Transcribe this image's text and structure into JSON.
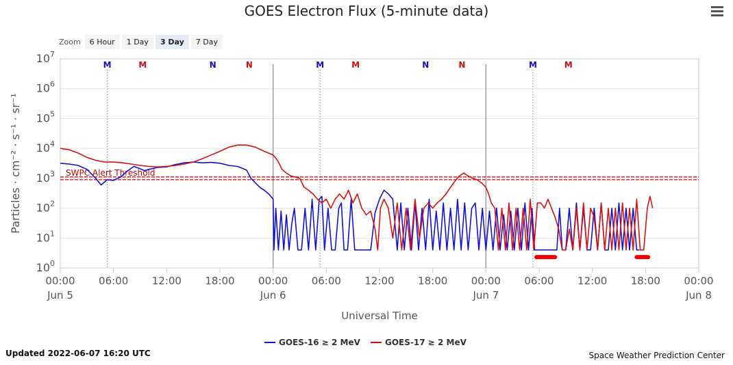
{
  "chart_data": {
    "type": "line",
    "title": "GOES Electron Flux (5-minute data)",
    "xlabel": "Universal Time",
    "ylabel": "Particles · cm⁻² · s⁻¹ · sr⁻¹",
    "y_scale": "log",
    "ylim": [
      1,
      10000000
    ],
    "xlim": [
      "2022-06-05 00:00",
      "2022-06-08 00:00"
    ],
    "y_ticks": [
      {
        "value": 1,
        "base": "10",
        "exp": "0"
      },
      {
        "value": 10,
        "base": "10",
        "exp": "1"
      },
      {
        "value": 100,
        "base": "10",
        "exp": "2"
      },
      {
        "value": 1000,
        "base": "10",
        "exp": "3"
      },
      {
        "value": 10000,
        "base": "10",
        "exp": "4"
      },
      {
        "value": 100000,
        "base": "10",
        "exp": "5"
      },
      {
        "value": 1000000,
        "base": "10",
        "exp": "6"
      },
      {
        "value": 10000000,
        "base": "10",
        "exp": "7"
      }
    ],
    "x_ticks": [
      {
        "h": 0,
        "time": "00:00",
        "day": "Jun 5"
      },
      {
        "h": 6,
        "time": "06:00",
        "day": ""
      },
      {
        "h": 12,
        "time": "12:00",
        "day": ""
      },
      {
        "h": 18,
        "time": "18:00",
        "day": ""
      },
      {
        "h": 24,
        "time": "00:00",
        "day": "Jun 6"
      },
      {
        "h": 30,
        "time": "06:00",
        "day": ""
      },
      {
        "h": 36,
        "time": "12:00",
        "day": ""
      },
      {
        "h": 42,
        "time": "18:00",
        "day": ""
      },
      {
        "h": 48,
        "time": "00:00",
        "day": "Jun 7"
      },
      {
        "h": 54,
        "time": "06:00",
        "day": ""
      },
      {
        "h": 60,
        "time": "12:00",
        "day": ""
      },
      {
        "h": 66,
        "time": "18:00",
        "day": ""
      },
      {
        "h": 72,
        "time": "00:00",
        "day": "Jun 8"
      }
    ],
    "threshold": {
      "value": 1000,
      "label": "SWPC Alert Threshold",
      "color": "#cc0000"
    },
    "day_lines_h": [
      24,
      48
    ],
    "marker_lines_h": [
      5.3,
      29.3,
      53.3
    ],
    "markers": [
      {
        "h": 5.3,
        "label": "M",
        "color": "#1010cc"
      },
      {
        "h": 9.3,
        "label": "M",
        "color": "#cc1010"
      },
      {
        "h": 17.2,
        "label": "N",
        "color": "#1010cc"
      },
      {
        "h": 21.3,
        "label": "N",
        "color": "#cc1010"
      },
      {
        "h": 29.3,
        "label": "M",
        "color": "#1010cc"
      },
      {
        "h": 33.3,
        "label": "M",
        "color": "#cc1010"
      },
      {
        "h": 41.2,
        "label": "N",
        "color": "#1010cc"
      },
      {
        "h": 45.3,
        "label": "N",
        "color": "#cc1010"
      },
      {
        "h": 53.3,
        "label": "M",
        "color": "#1010cc"
      },
      {
        "h": 57.3,
        "label": "M",
        "color": "#cc1010"
      }
    ],
    "series": [
      {
        "name": "GOES-16 ≥ 2 MeV",
        "color": "#1010dd",
        "points": [
          [
            0,
            3200
          ],
          [
            1,
            3000
          ],
          [
            2,
            2700
          ],
          [
            3,
            2000
          ],
          [
            4,
            1000
          ],
          [
            4.6,
            600
          ],
          [
            5.3,
            900
          ],
          [
            6,
            850
          ],
          [
            6.8,
            1100
          ],
          [
            7.5,
            1700
          ],
          [
            8.3,
            2500
          ],
          [
            9,
            2100
          ],
          [
            9.5,
            1800
          ],
          [
            10,
            2000
          ],
          [
            11,
            2300
          ],
          [
            12,
            2400
          ],
          [
            13,
            2900
          ],
          [
            14,
            3300
          ],
          [
            15,
            3500
          ],
          [
            16,
            3300
          ],
          [
            17,
            3400
          ],
          [
            18,
            3200
          ],
          [
            19,
            2700
          ],
          [
            20,
            2500
          ],
          [
            21,
            1900
          ],
          [
            21.5,
            1000
          ],
          [
            22,
            700
          ],
          [
            22.5,
            500
          ],
          [
            23,
            400
          ],
          [
            23.5,
            300
          ],
          [
            24,
            200
          ],
          [
            24.1,
            4
          ],
          [
            24.3,
            100
          ],
          [
            24.6,
            4
          ],
          [
            24.9,
            80
          ],
          [
            25.2,
            4
          ],
          [
            25.5,
            60
          ],
          [
            25.8,
            4
          ],
          [
            26.1,
            30
          ],
          [
            26.4,
            100
          ],
          [
            26.8,
            4
          ],
          [
            27.2,
            4
          ],
          [
            27.6,
            100
          ],
          [
            28,
            4
          ],
          [
            28.4,
            200
          ],
          [
            28.8,
            4
          ],
          [
            29.2,
            200
          ],
          [
            29.5,
            250
          ],
          [
            29.8,
            4
          ],
          [
            30.2,
            100
          ],
          [
            30.6,
            4
          ],
          [
            31,
            4
          ],
          [
            31.4,
            100
          ],
          [
            31.7,
            150
          ],
          [
            32,
            4
          ],
          [
            32.4,
            4
          ],
          [
            32.8,
            200
          ],
          [
            33.2,
            4
          ],
          [
            33.6,
            4
          ],
          [
            34.5,
            4
          ],
          [
            35,
            4
          ],
          [
            35.5,
            70
          ],
          [
            36,
            200
          ],
          [
            36.5,
            400
          ],
          [
            37,
            300
          ],
          [
            37.5,
            200
          ],
          [
            38,
            4
          ],
          [
            38.4,
            150
          ],
          [
            38.8,
            4
          ],
          [
            39.2,
            100
          ],
          [
            39.6,
            4
          ],
          [
            40,
            150
          ],
          [
            40.4,
            4
          ],
          [
            40.8,
            100
          ],
          [
            41.2,
            4
          ],
          [
            41.6,
            200
          ],
          [
            42,
            4
          ],
          [
            42.4,
            80
          ],
          [
            42.8,
            4
          ],
          [
            43.2,
            150
          ],
          [
            43.6,
            4
          ],
          [
            44,
            100
          ],
          [
            44.4,
            4
          ],
          [
            44.8,
            200
          ],
          [
            45.2,
            4
          ],
          [
            45.6,
            150
          ],
          [
            46,
            4
          ],
          [
            46.4,
            100
          ],
          [
            46.8,
            150
          ],
          [
            47.2,
            4
          ],
          [
            47.6,
            100
          ],
          [
            48,
            4
          ],
          [
            48.4,
            80
          ],
          [
            48.8,
            4
          ],
          [
            49.2,
            100
          ],
          [
            49.6,
            4
          ],
          [
            50,
            60
          ],
          [
            50.4,
            4
          ],
          [
            50.8,
            80
          ],
          [
            51.2,
            4
          ],
          [
            51.6,
            100
          ],
          [
            52,
            4
          ],
          [
            52.4,
            150
          ],
          [
            52.8,
            4
          ],
          [
            53.2,
            100
          ],
          [
            53.5,
            4
          ],
          [
            54,
            4
          ],
          [
            55,
            4
          ],
          [
            56,
            4
          ],
          [
            56.3,
            100
          ],
          [
            56.6,
            4
          ],
          [
            57,
            4
          ],
          [
            57.4,
            100
          ],
          [
            57.8,
            4
          ],
          [
            58.2,
            150
          ],
          [
            58.6,
            4
          ],
          [
            59,
            100
          ],
          [
            59.4,
            4
          ],
          [
            59.8,
            4
          ],
          [
            60.2,
            100
          ],
          [
            60.6,
            4
          ],
          [
            61,
            150
          ],
          [
            61.4,
            4
          ],
          [
            61.8,
            4
          ],
          [
            62.2,
            100
          ],
          [
            62.6,
            4
          ],
          [
            63,
            150
          ],
          [
            63.4,
            4
          ],
          [
            63.8,
            100
          ],
          [
            64.2,
            4
          ],
          [
            64.6,
            100
          ],
          [
            65,
            4
          ],
          [
            65.3,
            4
          ]
        ]
      },
      {
        "name": "GOES-17 ≥ 2 MeV",
        "color": "#dd1010",
        "points": [
          [
            0,
            10000
          ],
          [
            1,
            9000
          ],
          [
            2,
            7000
          ],
          [
            3,
            5000
          ],
          [
            4,
            4000
          ],
          [
            5,
            3500
          ],
          [
            6,
            3500
          ],
          [
            7,
            3300
          ],
          [
            8,
            3000
          ],
          [
            9,
            2700
          ],
          [
            10,
            2500
          ],
          [
            11,
            2400
          ],
          [
            12,
            2500
          ],
          [
            13,
            2700
          ],
          [
            14,
            3000
          ],
          [
            15,
            3500
          ],
          [
            16,
            4500
          ],
          [
            17,
            6000
          ],
          [
            18,
            8000
          ],
          [
            19,
            11000
          ],
          [
            20,
            13000
          ],
          [
            21,
            13000
          ],
          [
            22,
            11000
          ],
          [
            23,
            8000
          ],
          [
            24,
            6000
          ],
          [
            24.5,
            4000
          ],
          [
            25,
            2000
          ],
          [
            25.5,
            1500
          ],
          [
            26,
            1200
          ],
          [
            27,
            1000
          ],
          [
            27.5,
            500
          ],
          [
            28,
            400
          ],
          [
            28.5,
            300
          ],
          [
            29,
            200
          ],
          [
            29.5,
            150
          ],
          [
            30,
            200
          ],
          [
            30.5,
            100
          ],
          [
            31,
            200
          ],
          [
            31.5,
            300
          ],
          [
            32,
            200
          ],
          [
            32.5,
            400
          ],
          [
            33,
            150
          ],
          [
            33.5,
            300
          ],
          [
            34,
            100
          ],
          [
            34.5,
            60
          ],
          [
            35,
            80
          ],
          [
            35.5,
            20
          ],
          [
            35.8,
            4
          ],
          [
            36.1,
            100
          ],
          [
            36.5,
            200
          ],
          [
            37,
            100
          ],
          [
            37.5,
            10
          ],
          [
            38,
            150
          ],
          [
            38.5,
            4
          ],
          [
            39,
            100
          ],
          [
            39.5,
            4
          ],
          [
            40,
            200
          ],
          [
            40.5,
            10
          ],
          [
            41,
            100
          ],
          [
            41.5,
            150
          ],
          [
            42,
            100
          ],
          [
            42.5,
            150
          ],
          [
            43,
            200
          ],
          [
            43.5,
            300
          ],
          [
            44,
            500
          ],
          [
            44.5,
            800
          ],
          [
            45,
            1200
          ],
          [
            45.5,
            1500
          ],
          [
            46,
            1200
          ],
          [
            46.5,
            1000
          ],
          [
            47,
            900
          ],
          [
            47.5,
            700
          ],
          [
            48,
            500
          ],
          [
            48.3,
            300
          ],
          [
            48.6,
            150
          ],
          [
            49,
            100
          ],
          [
            49.4,
            4
          ],
          [
            49.8,
            100
          ],
          [
            50.2,
            4
          ],
          [
            50.6,
            150
          ],
          [
            51,
            4
          ],
          [
            51.4,
            100
          ],
          [
            51.8,
            4
          ],
          [
            52.2,
            100
          ],
          [
            52.6,
            4
          ],
          [
            53,
            200
          ],
          [
            53.4,
            4
          ],
          [
            53.8,
            150
          ],
          [
            54.2,
            150
          ],
          [
            54.6,
            100
          ],
          [
            55,
            200
          ],
          [
            55.4,
            100
          ],
          [
            55.8,
            50
          ],
          [
            56.2,
            20
          ],
          [
            56.6,
            4
          ],
          [
            57,
            4
          ],
          [
            57.4,
            20
          ],
          [
            57.8,
            4
          ],
          [
            58.2,
            100
          ],
          [
            58.6,
            4
          ],
          [
            59,
            150
          ],
          [
            59.4,
            4
          ],
          [
            59.8,
            100
          ],
          [
            60.2,
            50
          ],
          [
            60.6,
            4
          ],
          [
            61,
            150
          ],
          [
            61.4,
            4
          ],
          [
            61.8,
            100
          ],
          [
            62.2,
            4
          ],
          [
            62.6,
            100
          ],
          [
            63,
            4
          ],
          [
            63.4,
            150
          ],
          [
            63.8,
            4
          ],
          [
            64.2,
            100
          ],
          [
            64.6,
            4
          ],
          [
            65,
            200
          ],
          [
            65.4,
            4
          ],
          [
            65.8,
            4
          ],
          [
            66.2,
            100
          ],
          [
            66.5,
            250
          ],
          [
            66.8,
            100
          ]
        ]
      }
    ],
    "gap_bars": [
      {
        "h1": 53.7,
        "h2": 55.8,
        "y": 2.3
      },
      {
        "h1": 65.0,
        "h2": 66.3,
        "y": 2.3
      }
    ],
    "grid": true,
    "legend": "bottom"
  },
  "toolbar": {
    "zoom_label": "Zoom",
    "buttons": [
      {
        "label": "6 Hour",
        "active": false
      },
      {
        "label": "1 Day",
        "active": false
      },
      {
        "label": "3 Day",
        "active": true
      },
      {
        "label": "7 Day",
        "active": false
      }
    ]
  },
  "footer": {
    "updated": "Updated 2022-06-07 16:20 UTC",
    "credit": "Space Weather Prediction Center"
  }
}
